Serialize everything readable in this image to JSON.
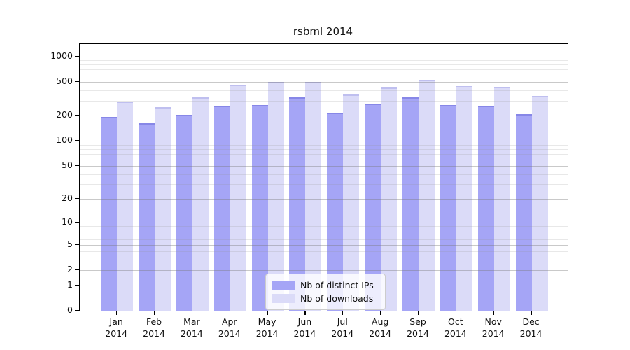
{
  "title": "rsbml 2014",
  "chart_data": {
    "type": "bar",
    "title": "rsbml 2014",
    "categories": [
      "Jan",
      "Feb",
      "Mar",
      "Apr",
      "May",
      "Jun",
      "Jul",
      "Aug",
      "Sep",
      "Oct",
      "Nov",
      "Dec"
    ],
    "category_year": "2014",
    "series": [
      {
        "name": "Nb of distinct IPs",
        "color": "#a5a5f6",
        "values": [
          185,
          155,
          198,
          253,
          259,
          320,
          210,
          267,
          317,
          257,
          253,
          200
        ]
      },
      {
        "name": "Nb of downloads",
        "color": "#dbdbf8",
        "values": [
          281,
          244,
          318,
          449,
          479,
          478,
          343,
          413,
          512,
          432,
          419,
          328
        ]
      }
    ],
    "y_axis": {
      "scale": "log10(value+1)",
      "tick_labels": [
        0,
        1,
        2,
        5,
        10,
        20,
        50,
        100,
        200,
        500,
        1000
      ],
      "minor_gridlines": [
        3,
        4,
        6,
        7,
        8,
        9,
        30,
        40,
        60,
        70,
        80,
        90,
        300,
        400,
        600,
        700,
        800,
        900
      ],
      "axis_top_value": 1400,
      "grid": "on, drawn above bars"
    },
    "legend_position": "bottom-center"
  },
  "colors": {
    "ip_bar": "#a5a5f6",
    "download_bar": "#dbdbf8",
    "spine": "#000000",
    "major_grid": "rgba(120,120,120,0.40)",
    "minor_grid": "rgba(150,150,150,0.22)"
  }
}
